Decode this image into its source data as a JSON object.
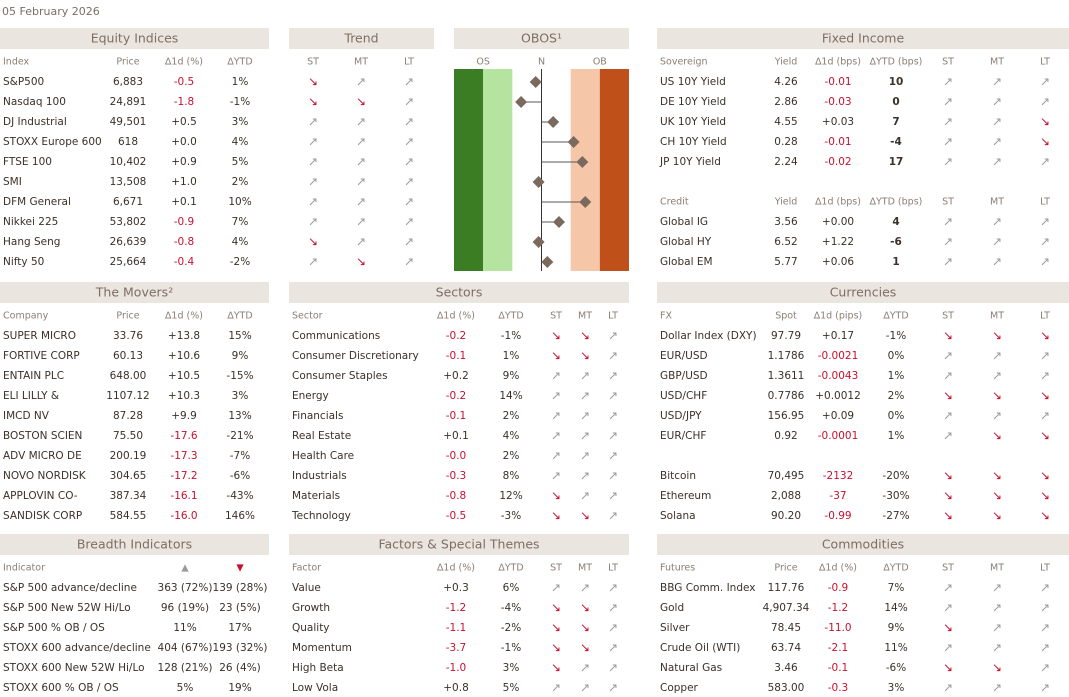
{
  "date": "05 February 2026",
  "panels": {
    "equity": {
      "title": "Equity Indices",
      "columns": [
        "Index",
        "Price",
        "∆1d (%)",
        "∆YTD"
      ],
      "rows": [
        [
          "S&P500",
          "6,883",
          "-0.5",
          "1%"
        ],
        [
          "Nasdaq 100",
          "24,891",
          "-1.8",
          "-1%"
        ],
        [
          "DJ Industrial",
          "49,501",
          "+0.5",
          "3%"
        ],
        [
          "STOXX Europe 600",
          "618",
          "+0.0",
          "4%"
        ],
        [
          "FTSE 100",
          "10,402",
          "+0.9",
          "5%"
        ],
        [
          "SMI",
          "13,508",
          "+1.0",
          "2%"
        ],
        [
          "DFM General",
          "6,671",
          "+0.1",
          "10%"
        ],
        [
          "Nikkei 225",
          "53,802",
          "-0.9",
          "7%"
        ],
        [
          "Hang Seng",
          "26,639",
          "-0.8",
          "4%"
        ],
        [
          "Nifty 50",
          "25,664",
          "-0.4",
          "-2%"
        ]
      ]
    },
    "trend": {
      "title": "Trend",
      "columns": [
        "ST",
        "MT",
        "LT"
      ],
      "rows": [
        [
          "↘",
          "↗",
          "↗"
        ],
        [
          "↘",
          "↘",
          "↗"
        ],
        [
          "↗",
          "↗",
          "↗"
        ],
        [
          "↗",
          "↗",
          "↗"
        ],
        [
          "↗",
          "↗",
          "↗"
        ],
        [
          "↗",
          "↗",
          "↗"
        ],
        [
          "↗",
          "↗",
          "↗"
        ],
        [
          "↗",
          "↗",
          "↗"
        ],
        [
          "↘",
          "↗",
          "↗"
        ],
        [
          "↗",
          "↘",
          "↗"
        ]
      ]
    },
    "fixed": {
      "title": "Fixed Income",
      "columns": [
        "Sovereign",
        "Yield",
        "∆1d (bps)",
        "∆YTD (bps)",
        "ST",
        "MT",
        "LT"
      ],
      "rows": [
        [
          "US 10Y Yield",
          "4.26",
          "-0.01",
          "10",
          "↗",
          "↗",
          "↗"
        ],
        [
          "DE 10Y Yield",
          "2.86",
          "-0.03",
          "0",
          "↗",
          "↗",
          "↗"
        ],
        [
          "UK 10Y Yield",
          "4.55",
          "+0.03",
          "7",
          "↗",
          "↗",
          "↘"
        ],
        [
          "CH 10Y Yield",
          "0.28",
          "-0.01",
          "-4",
          "↗",
          "↗",
          "↘"
        ],
        [
          "JP 10Y Yield",
          "2.24",
          "-0.02",
          "17",
          "↗",
          "↗",
          "↗"
        ]
      ]
    },
    "credit": {
      "columns": [
        "Credit",
        "Yield",
        "∆1d (bps)",
        "∆YTD (bps)",
        "ST",
        "MT",
        "LT"
      ],
      "rows": [
        [
          "Global IG",
          "3.56",
          "+0.00",
          "4",
          "↗",
          "↗",
          "↗"
        ],
        [
          "Global HY",
          "6.52",
          "+1.22",
          "-6",
          "↗",
          "↗",
          "↗"
        ],
        [
          "Global EM",
          "5.77",
          "+0.06",
          "1",
          "↗",
          "↗",
          "↗"
        ]
      ]
    },
    "movers": {
      "title": "The Movers²",
      "columns": [
        "Company",
        "Price",
        "∆1d (%)",
        "∆YTD"
      ],
      "rows": [
        [
          "SUPER MICRO",
          "33.76",
          "+13.8",
          "15%"
        ],
        [
          "FORTIVE CORP",
          "60.13",
          "+10.6",
          "9%"
        ],
        [
          "ENTAIN PLC",
          "648.00",
          "+10.5",
          "-15%"
        ],
        [
          "ELI LILLY &",
          "1107.12",
          "+10.3",
          "3%"
        ],
        [
          "IMCD NV",
          "87.28",
          "+9.9",
          "13%"
        ],
        [
          "BOSTON SCIEN",
          "75.50",
          "-17.6",
          "-21%"
        ],
        [
          "ADV MICRO DE",
          "200.19",
          "-17.3",
          "-7%"
        ],
        [
          "NOVO NORDISK",
          "304.65",
          "-17.2",
          "-6%"
        ],
        [
          "APPLOVIN CO-",
          "387.34",
          "-16.1",
          "-43%"
        ],
        [
          "SANDISK CORP",
          "584.55",
          "-16.0",
          "146%"
        ]
      ]
    },
    "sectors": {
      "title": "Sectors",
      "columns": [
        "Sector",
        "∆1d (%)",
        "∆YTD",
        "ST",
        "MT",
        "LT"
      ],
      "rows": [
        [
          "Communications",
          "-0.2",
          "-1%",
          "↘",
          "↘",
          "↗"
        ],
        [
          "Consumer Discretionary",
          "-0.1",
          "1%",
          "↘",
          "↘",
          "↗"
        ],
        [
          "Consumer Staples",
          "+0.2",
          "9%",
          "↗",
          "↗",
          "↗"
        ],
        [
          "Energy",
          "-0.2",
          "14%",
          "↗",
          "↗",
          "↗"
        ],
        [
          "Financials",
          "-0.1",
          "2%",
          "↗",
          "↗",
          "↗"
        ],
        [
          "Real Estate",
          "+0.1",
          "4%",
          "↗",
          "↗",
          "↗"
        ],
        [
          "Health Care",
          "-0.0",
          "2%",
          "↗",
          "↗",
          "↗"
        ],
        [
          "Industrials",
          "-0.3",
          "8%",
          "↗",
          "↗",
          "↗"
        ],
        [
          "Materials",
          "-0.8",
          "12%",
          "↘",
          "↗",
          "↗"
        ],
        [
          "Technology",
          "-0.5",
          "-3%",
          "↘",
          "↘",
          "↗"
        ]
      ]
    },
    "fx": {
      "title": "Currencies",
      "columns": [
        "FX",
        "Spot",
        "∆1d (pips)",
        "∆YTD",
        "ST",
        "MT",
        "LT"
      ],
      "rows": [
        [
          "Dollar Index (DXY)",
          "97.79",
          "+0.17",
          "-1%",
          "↘",
          "↘",
          "↘"
        ],
        [
          "EUR/USD",
          "1.1786",
          "-0.0021",
          "0%",
          "↗",
          "↗",
          "↗"
        ],
        [
          "GBP/USD",
          "1.3611",
          "-0.0043",
          "1%",
          "↗",
          "↗",
          "↗"
        ],
        [
          "USD/CHF",
          "0.7786",
          "+0.0012",
          "2%",
          "↘",
          "↘",
          "↘"
        ],
        [
          "USD/JPY",
          "156.95",
          "+0.09",
          "0%",
          "↗",
          "↗",
          "↗"
        ],
        [
          "EUR/CHF",
          "0.92",
          "-0.0001",
          "1%",
          "↗",
          "↘",
          "↘"
        ]
      ]
    },
    "crypto": {
      "rows": [
        [
          "Bitcoin",
          "70,495",
          "-2132",
          "-20%",
          "↘",
          "↘",
          "↘"
        ],
        [
          "Ethereum",
          "2,088",
          "-37",
          "-30%",
          "↘",
          "↘",
          "↘"
        ],
        [
          "Solana",
          "90.20",
          "-0.99",
          "-27%",
          "↘",
          "↘",
          "↘"
        ]
      ]
    },
    "breadth": {
      "title": "Breadth Indicators",
      "columns": [
        "Indicator",
        "▲",
        "▼"
      ],
      "rows": [
        [
          "S&P 500 advance/decline",
          "363 (72%)",
          "139 (28%)"
        ],
        [
          "S&P 500 New 52W Hi/Lo",
          "96 (19%)",
          "23 (5%)"
        ],
        [
          "S&P 500 % OB / OS",
          "11%",
          "17%"
        ],
        [
          "STOXX 600 advance/decline",
          "404 (67%)",
          "193 (32%)"
        ],
        [
          "STOXX 600 New 52W Hi/Lo",
          "128 (21%)",
          "26 (4%)"
        ],
        [
          "STOXX 600 % OB / OS",
          "5%",
          "19%"
        ]
      ]
    },
    "factors": {
      "title": "Factors & Special Themes",
      "columns": [
        "Factor",
        "∆1d (%)",
        "∆YTD",
        "ST",
        "MT",
        "LT"
      ],
      "rows": [
        [
          "Value",
          "+0.3",
          "6%",
          "↗",
          "↗",
          "↗"
        ],
        [
          "Growth",
          "-1.2",
          "-4%",
          "↘",
          "↘",
          "↗"
        ],
        [
          "Quality",
          "-1.1",
          "-2%",
          "↘",
          "↘",
          "↗"
        ],
        [
          "Momentum",
          "-3.7",
          "-1%",
          "↘",
          "↘",
          "↗"
        ],
        [
          "High Beta",
          "-1.0",
          "3%",
          "↘",
          "↗",
          "↗"
        ],
        [
          "Low Vola",
          "+0.8",
          "5%",
          "↗",
          "↗",
          "↗"
        ]
      ]
    },
    "commodities": {
      "title": "Commodities",
      "columns": [
        "Futures",
        "Price",
        "∆1d (%)",
        "∆YTD",
        "ST",
        "MT",
        "LT"
      ],
      "rows": [
        [
          "BBG Comm. Index",
          "117.76",
          "-0.9",
          "7%",
          "↗",
          "↗",
          "↗"
        ],
        [
          "Gold",
          "4,907.34",
          "-1.2",
          "14%",
          "↗",
          "↗",
          "↗"
        ],
        [
          "Silver",
          "78.45",
          "-11.0",
          "9%",
          "↘",
          "↗",
          "↗"
        ],
        [
          "Crude Oil (WTI)",
          "63.74",
          "-2.1",
          "11%",
          "↗",
          "↗",
          "↗"
        ],
        [
          "Natural Gas",
          "3.46",
          "-0.1",
          "-6%",
          "↘",
          "↘",
          "↗"
        ],
        [
          "Copper",
          "583.00",
          "-0.3",
          "3%",
          "↗",
          "↗",
          "↗"
        ]
      ]
    }
  },
  "obos": {
    "type": "dot",
    "title": "OBOS¹",
    "labels": [
      "OS",
      "N",
      "OB"
    ],
    "values": [
      -0.2,
      -0.7,
      0.4,
      1.1,
      1.4,
      -0.1,
      1.5,
      0.6,
      -0.1,
      0.2
    ],
    "xlim": [
      -3,
      3
    ],
    "colors": [
      "#3a7d22",
      "#b5e4a0",
      "#f5c6a8",
      "#c0501a"
    ],
    "marker_color": "#7a6a5e"
  }
}
